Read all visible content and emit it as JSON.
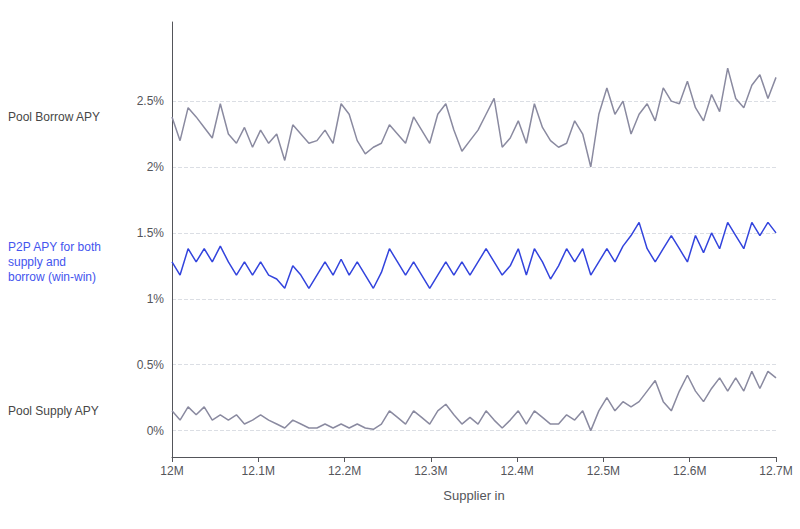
{
  "chart_data": {
    "type": "line",
    "xlabel": "Supplier in",
    "grid": true,
    "x": [
      12,
      12.00933,
      12.01867,
      12.028,
      12.03733,
      12.04667,
      12.056,
      12.06533,
      12.07467,
      12.084,
      12.09333,
      12.10267,
      12.112,
      12.12133,
      12.13067,
      12.14,
      12.14933,
      12.15867,
      12.168,
      12.17733,
      12.18667,
      12.196,
      12.20533,
      12.21467,
      12.224,
      12.23333,
      12.24267,
      12.252,
      12.26133,
      12.27067,
      12.28,
      12.28933,
      12.29867,
      12.308,
      12.31733,
      12.32667,
      12.336,
      12.34533,
      12.35467,
      12.364,
      12.37333,
      12.38267,
      12.392,
      12.40133,
      12.41067,
      12.42,
      12.42933,
      12.43867,
      12.448,
      12.45733,
      12.46667,
      12.476,
      12.48533,
      12.49467,
      12.504,
      12.51333,
      12.52267,
      12.532,
      12.54133,
      12.55067,
      12.56,
      12.56933,
      12.57867,
      12.588,
      12.59733,
      12.60667,
      12.616,
      12.62533,
      12.63467,
      12.644,
      12.65333,
      12.66267,
      12.672,
      12.68133,
      12.69067,
      12.7
    ],
    "xlim": [
      12,
      12.7
    ],
    "xticks": [
      {
        "value": 12,
        "label": "12M"
      },
      {
        "value": 12.1,
        "label": "12.1M"
      },
      {
        "value": 12.2,
        "label": "12.2M"
      },
      {
        "value": 12.3,
        "label": "12.3M"
      },
      {
        "value": 12.4,
        "label": "12.4M"
      },
      {
        "value": 12.5,
        "label": "12.5M"
      },
      {
        "value": 12.6,
        "label": "12.6M"
      },
      {
        "value": 12.7,
        "label": "12.7M"
      }
    ],
    "ylim": [
      -0.002,
      0.031
    ],
    "yticks": [
      {
        "value": 0,
        "label": "0%"
      },
      {
        "value": 0.005,
        "label": "0.5%"
      },
      {
        "value": 0.01,
        "label": "1%"
      },
      {
        "value": 0.015,
        "label": "1.5%"
      },
      {
        "value": 0.02,
        "label": "2%"
      },
      {
        "value": 0.025,
        "label": "2.5%"
      }
    ],
    "series": [
      {
        "color": "#8a8aa0",
        "values": [
          0.0238,
          0.022,
          0.0245,
          0.0238,
          0.023,
          0.0222,
          0.0248,
          0.0225,
          0.0218,
          0.023,
          0.0215,
          0.0228,
          0.0218,
          0.0225,
          0.0205,
          0.0232,
          0.0225,
          0.0218,
          0.022,
          0.0228,
          0.0218,
          0.0248,
          0.024,
          0.022,
          0.021,
          0.0215,
          0.0218,
          0.0232,
          0.0225,
          0.0218,
          0.0238,
          0.0228,
          0.0218,
          0.024,
          0.0248,
          0.0228,
          0.0212,
          0.022,
          0.0228,
          0.024,
          0.0252,
          0.0215,
          0.0222,
          0.0235,
          0.0218,
          0.0248,
          0.023,
          0.022,
          0.0215,
          0.0218,
          0.0235,
          0.0225,
          0.02,
          0.024,
          0.026,
          0.024,
          0.025,
          0.0225,
          0.024,
          0.0248,
          0.0235,
          0.026,
          0.025,
          0.0248,
          0.0265,
          0.0245,
          0.0235,
          0.0255,
          0.0242,
          0.0275,
          0.0252,
          0.0245,
          0.0262,
          0.027,
          0.0252,
          0.0268
        ]
      },
      {
        "color": "#3344dd",
        "values": [
          0.0128,
          0.0118,
          0.0138,
          0.0128,
          0.0138,
          0.0128,
          0.014,
          0.0128,
          0.0118,
          0.0128,
          0.0118,
          0.0128,
          0.0118,
          0.0115,
          0.0108,
          0.0125,
          0.0118,
          0.0108,
          0.0118,
          0.0128,
          0.0118,
          0.013,
          0.0118,
          0.0128,
          0.0118,
          0.0108,
          0.012,
          0.0138,
          0.0128,
          0.0118,
          0.0128,
          0.0118,
          0.0108,
          0.0118,
          0.0128,
          0.0118,
          0.0128,
          0.0118,
          0.0128,
          0.0138,
          0.0128,
          0.0118,
          0.0125,
          0.0138,
          0.0118,
          0.0138,
          0.0128,
          0.0115,
          0.0125,
          0.0138,
          0.0128,
          0.0138,
          0.0118,
          0.0128,
          0.0138,
          0.0128,
          0.014,
          0.0148,
          0.0158,
          0.0138,
          0.0128,
          0.0138,
          0.0148,
          0.0138,
          0.0128,
          0.0148,
          0.0135,
          0.015,
          0.0138,
          0.0158,
          0.0148,
          0.0138,
          0.0158,
          0.0148,
          0.0158,
          0.015
        ]
      },
      {
        "color": "#8a8aa0",
        "values": [
          0.0015,
          0.0008,
          0.0018,
          0.0012,
          0.0018,
          0.0008,
          0.0012,
          0.0008,
          0.0012,
          0.0005,
          0.0008,
          0.0012,
          0.0008,
          0.0005,
          0.0002,
          0.0008,
          0.0005,
          0.0002,
          0.0002,
          0.0005,
          0.0002,
          0.0005,
          0.0002,
          0.0005,
          0.0002,
          0.0001,
          0.0005,
          0.0015,
          0.001,
          0.0005,
          0.0015,
          0.001,
          0.0005,
          0.0015,
          0.002,
          0.0012,
          0.0005,
          0.001,
          0.0005,
          0.0015,
          0.0008,
          0.0002,
          0.0008,
          0.0015,
          0.0005,
          0.0015,
          0.001,
          0.0005,
          0.0005,
          0.0012,
          0.0008,
          0.0015,
          0.0,
          0.0015,
          0.0025,
          0.0015,
          0.0022,
          0.0018,
          0.0022,
          0.003,
          0.0038,
          0.0022,
          0.0015,
          0.003,
          0.0042,
          0.003,
          0.0022,
          0.0032,
          0.004,
          0.003,
          0.004,
          0.003,
          0.0045,
          0.0032,
          0.0045,
          0.004
        ]
      }
    ],
    "annotations": [
      {
        "text": "Pool Borrow APY"
      },
      {
        "text": "P2P APY for both\nsupply and\nborrow (win-win)",
        "color": "#4455ee"
      },
      {
        "text": "Pool Supply APY"
      }
    ]
  }
}
